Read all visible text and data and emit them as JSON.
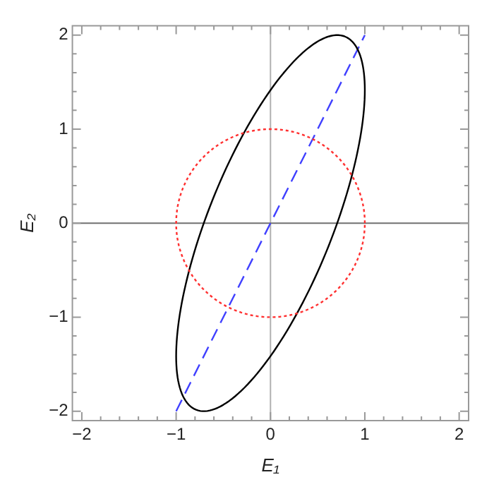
{
  "chart_data": {
    "type": "line",
    "xlabel": "E₁",
    "ylabel": "E₂",
    "xlim": [
      -2.1,
      2.1
    ],
    "ylim": [
      -2.1,
      2.1
    ],
    "xticks": [
      -2,
      {
        "value": -1.8,
        "label": null
      },
      {
        "value": -1.6,
        "label": null
      },
      {
        "value": -1.4,
        "label": null
      },
      {
        "value": -1.2,
        "label": null
      },
      -1,
      {
        "value": -0.8,
        "label": null
      },
      {
        "value": -0.6,
        "label": null
      },
      {
        "value": -0.4,
        "label": null
      },
      {
        "value": -0.2,
        "label": null
      },
      0,
      {
        "value": 0.2,
        "label": null
      },
      {
        "value": 0.4,
        "label": null
      },
      {
        "value": 0.6,
        "label": null
      },
      {
        "value": 0.8,
        "label": null
      },
      1,
      {
        "value": 1.2,
        "label": null
      },
      {
        "value": 1.4,
        "label": null
      },
      {
        "value": 1.6,
        "label": null
      },
      {
        "value": 1.8,
        "label": null
      },
      2
    ],
    "yticks": [
      -2,
      {
        "value": -1.8,
        "label": null
      },
      {
        "value": -1.6,
        "label": null
      },
      {
        "value": -1.4,
        "label": null
      },
      {
        "value": -1.2,
        "label": null
      },
      -1,
      {
        "value": -0.8,
        "label": null
      },
      {
        "value": -0.6,
        "label": null
      },
      {
        "value": -0.4,
        "label": null
      },
      {
        "value": -0.2,
        "label": null
      },
      0,
      {
        "value": 0.2,
        "label": null
      },
      {
        "value": 0.4,
        "label": null
      },
      {
        "value": 0.6,
        "label": null
      },
      {
        "value": 0.8,
        "label": null
      },
      1,
      {
        "value": 1.2,
        "label": null
      },
      {
        "value": 1.4,
        "label": null
      },
      {
        "value": 1.6,
        "label": null
      },
      {
        "value": 1.8,
        "label": null
      },
      2
    ],
    "grid": false,
    "legend": false,
    "marker": "none",
    "ref_lines": [
      {
        "axis": "x",
        "value": 0,
        "color": "#b0b0b0"
      },
      {
        "axis": "y",
        "value": 0,
        "color": "#707070"
      }
    ],
    "series": [
      {
        "color": "#4040ff",
        "line_style": "dashed",
        "x": [
          -1,
          1
        ],
        "values": [
          -2,
          2
        ]
      }
    ]
  }
}
